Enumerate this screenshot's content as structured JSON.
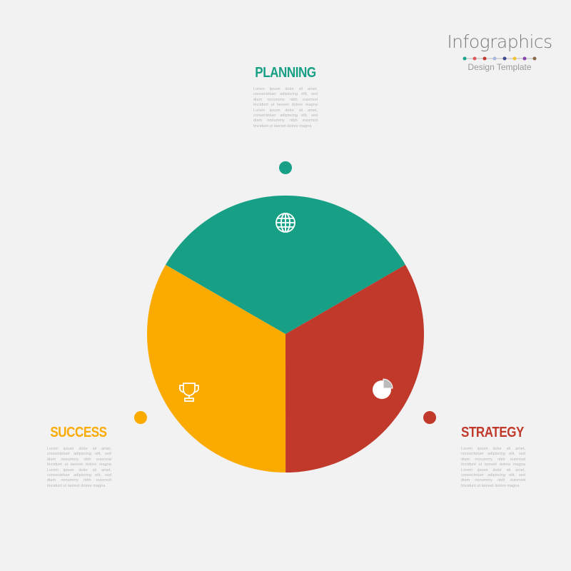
{
  "brand": {
    "title": "Infographics",
    "subtitle": "Design Template",
    "dot_colors": [
      "#1aa58a",
      "#e05a5a",
      "#c0392b",
      "#a9b8e0",
      "#3b4a8c",
      "#f2c230",
      "#8e44ad",
      "#8b6b4a"
    ]
  },
  "segments": [
    {
      "label": "PLANNING",
      "color": "#17a085",
      "icon": "globe-icon",
      "text": "Lorem ipsum dolor sit amet, consectetuer adipiscing elit, sed diam nonummy nibh euismod tincidunt ut laoreet dolore magna Lorem ipsum dolor sit amet, consectetuer adipiscing elit, sed diam nonummy nibh euismod tincidunt ut laoreet dolore magna",
      "share": 0.3333
    },
    {
      "label": "STRATEGY",
      "color": "#c0392b",
      "icon": "pie-chart-icon",
      "text": "Lorem ipsum dolor sit amet, consectetuer adipiscing elit, sed diam nonummy nibh euismod tincidunt ut laoreet dolore magna Lorem ipsum dolor sit amet, consectetuer adipiscing elit, sed diam nonummy nibh euismod tincidunt ut laoreet dolore magna",
      "share": 0.3333
    },
    {
      "label": "SUCCESS",
      "color": "#fbaa00",
      "icon": "trophy-icon",
      "text": "Lorem ipsum dolor sit amet, consectetuer adipiscing elit, sed diam nonummy nibh euismod tincidunt ut laoreet dolore magna Lorem ipsum dolor sit amet, consectetuer adipiscing elit, sed diam nonummy nibh euismod tincidunt ut laoreet dolore magna",
      "share": 0.3333
    }
  ]
}
